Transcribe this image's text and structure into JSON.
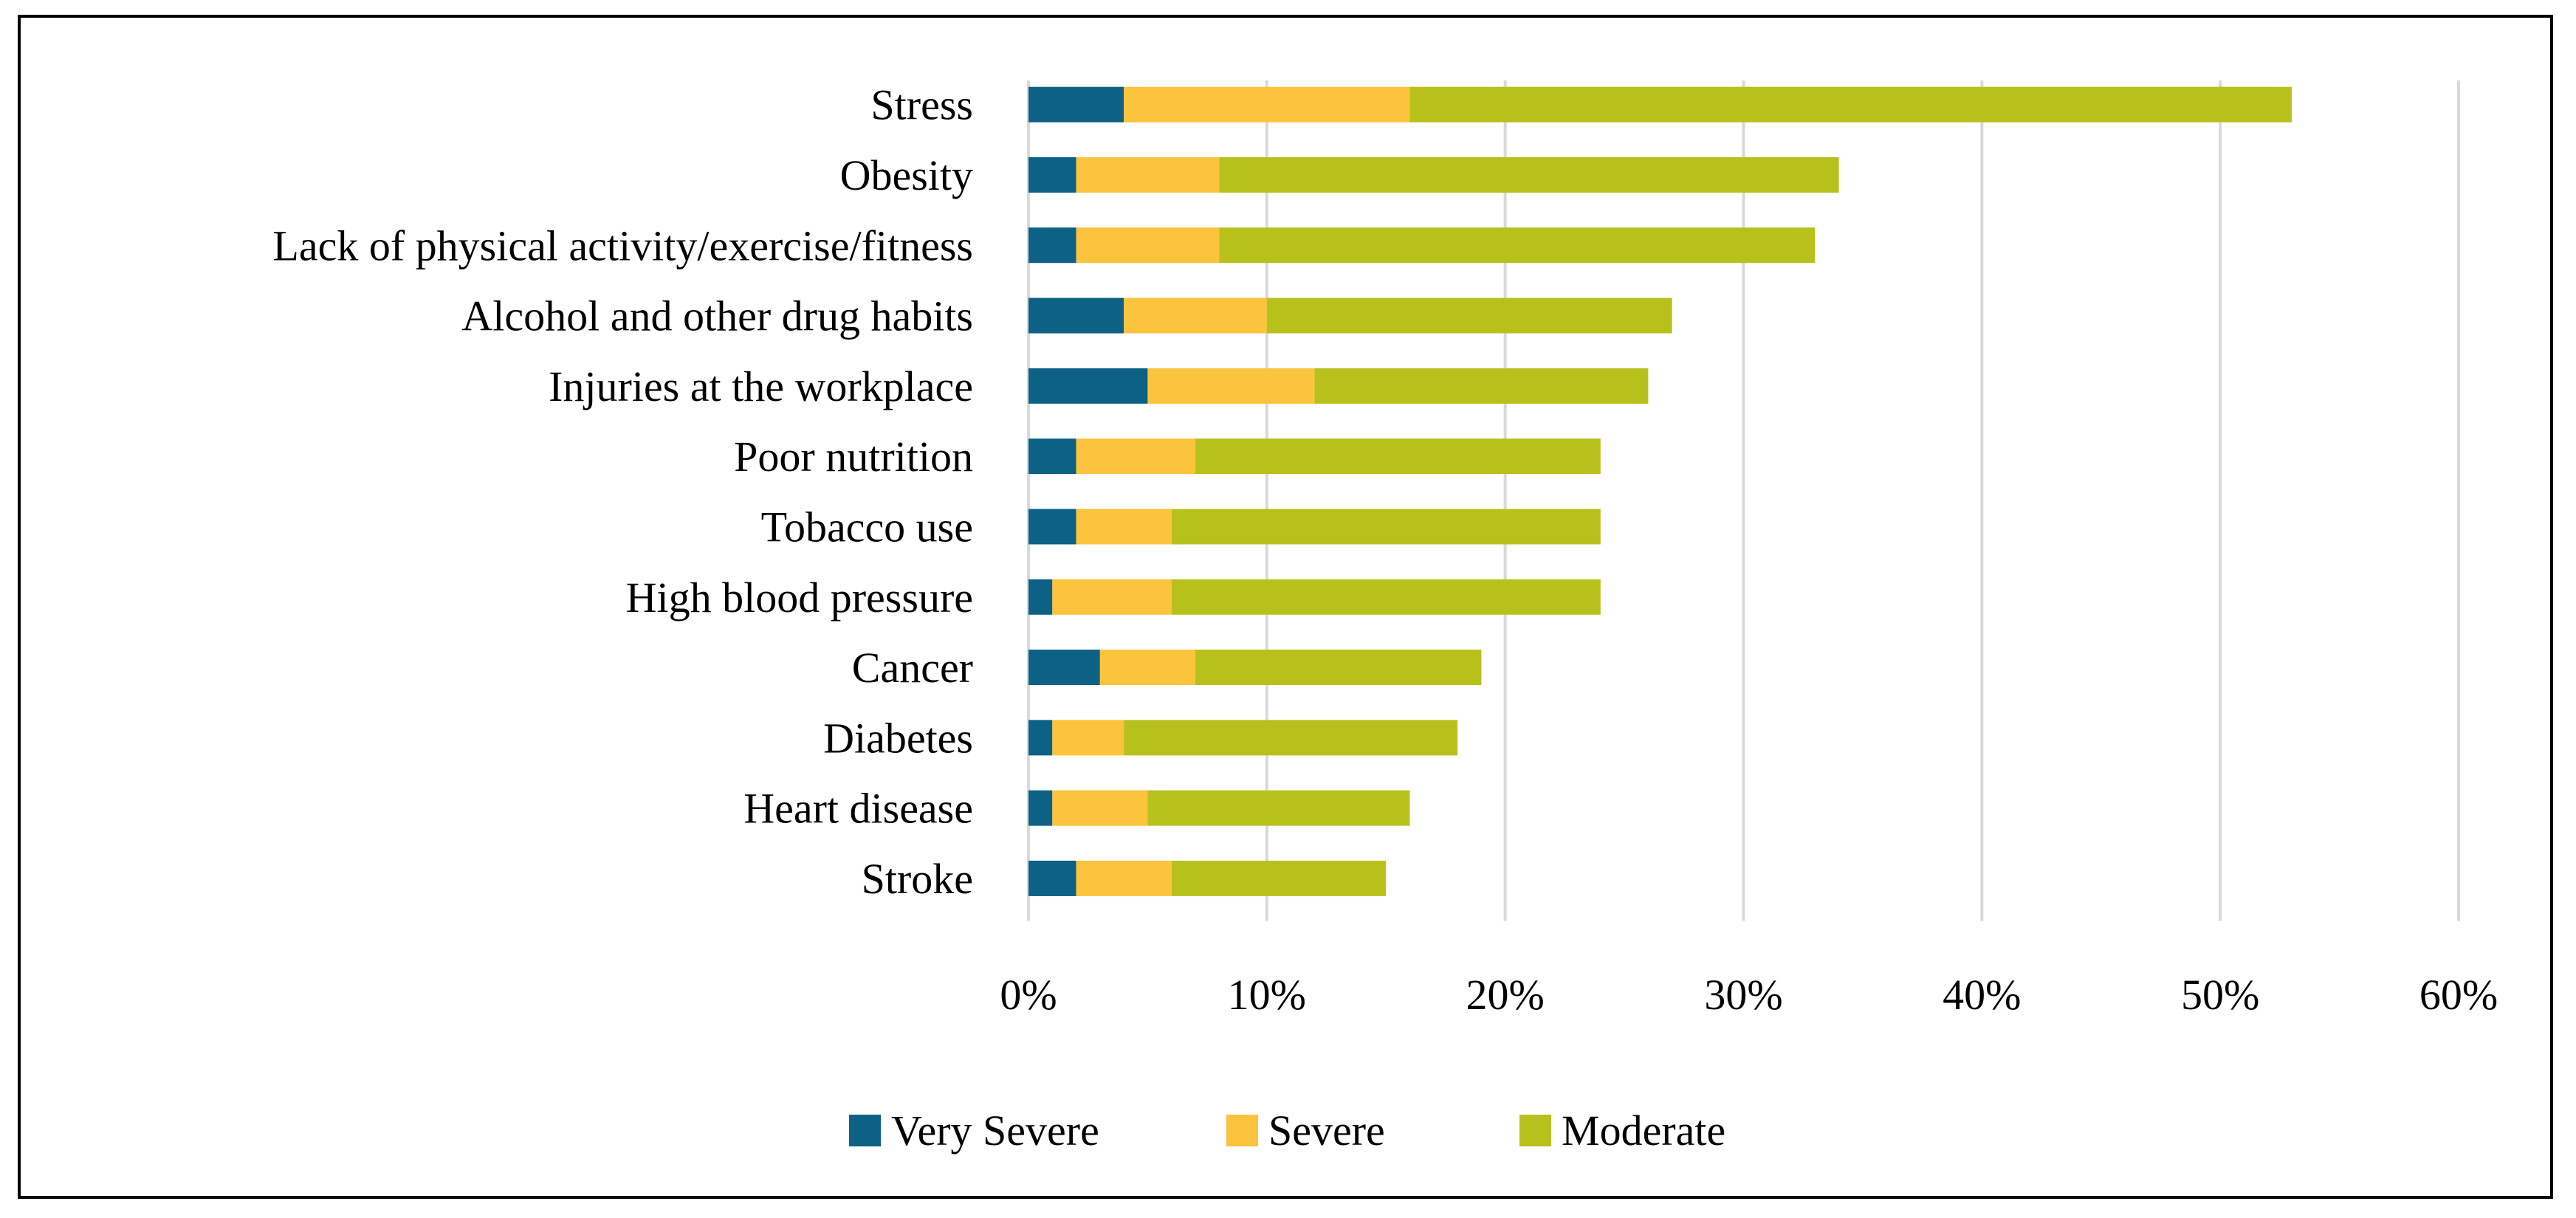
{
  "chart_data": {
    "type": "bar",
    "orientation": "horizontal",
    "stacked": true,
    "title": "",
    "xlabel": "",
    "ylabel": "",
    "xlim": [
      0,
      60
    ],
    "grid": true,
    "legend_position": "bottom",
    "x_ticks": [
      "0%",
      "10%",
      "20%",
      "30%",
      "40%",
      "50%",
      "60%"
    ],
    "x_tick_values": [
      0,
      10,
      20,
      30,
      40,
      50,
      60
    ],
    "categories": [
      "Stress",
      "Obesity",
      "Lack of physical activity/exercise/fitness",
      "Alcohol and other drug habits",
      "Injuries at the workplace",
      "Poor nutrition",
      "Tobacco use",
      "High blood pressure",
      "Cancer",
      "Diabetes",
      "Heart disease",
      "Stroke"
    ],
    "series": [
      {
        "name": "Very Severe",
        "color": "#0d6185",
        "values": [
          4,
          2,
          2,
          4,
          5,
          2,
          2,
          1,
          3,
          1,
          1,
          2
        ]
      },
      {
        "name": "Severe",
        "color": "#fcc33c",
        "values": [
          12,
          6,
          6,
          6,
          7,
          5,
          4,
          5,
          4,
          3,
          4,
          4
        ]
      },
      {
        "name": "Moderate",
        "color": "#b8c11b",
        "values": [
          37,
          26,
          25,
          17,
          14,
          17,
          18,
          18,
          12,
          14,
          11,
          9
        ]
      }
    ]
  }
}
